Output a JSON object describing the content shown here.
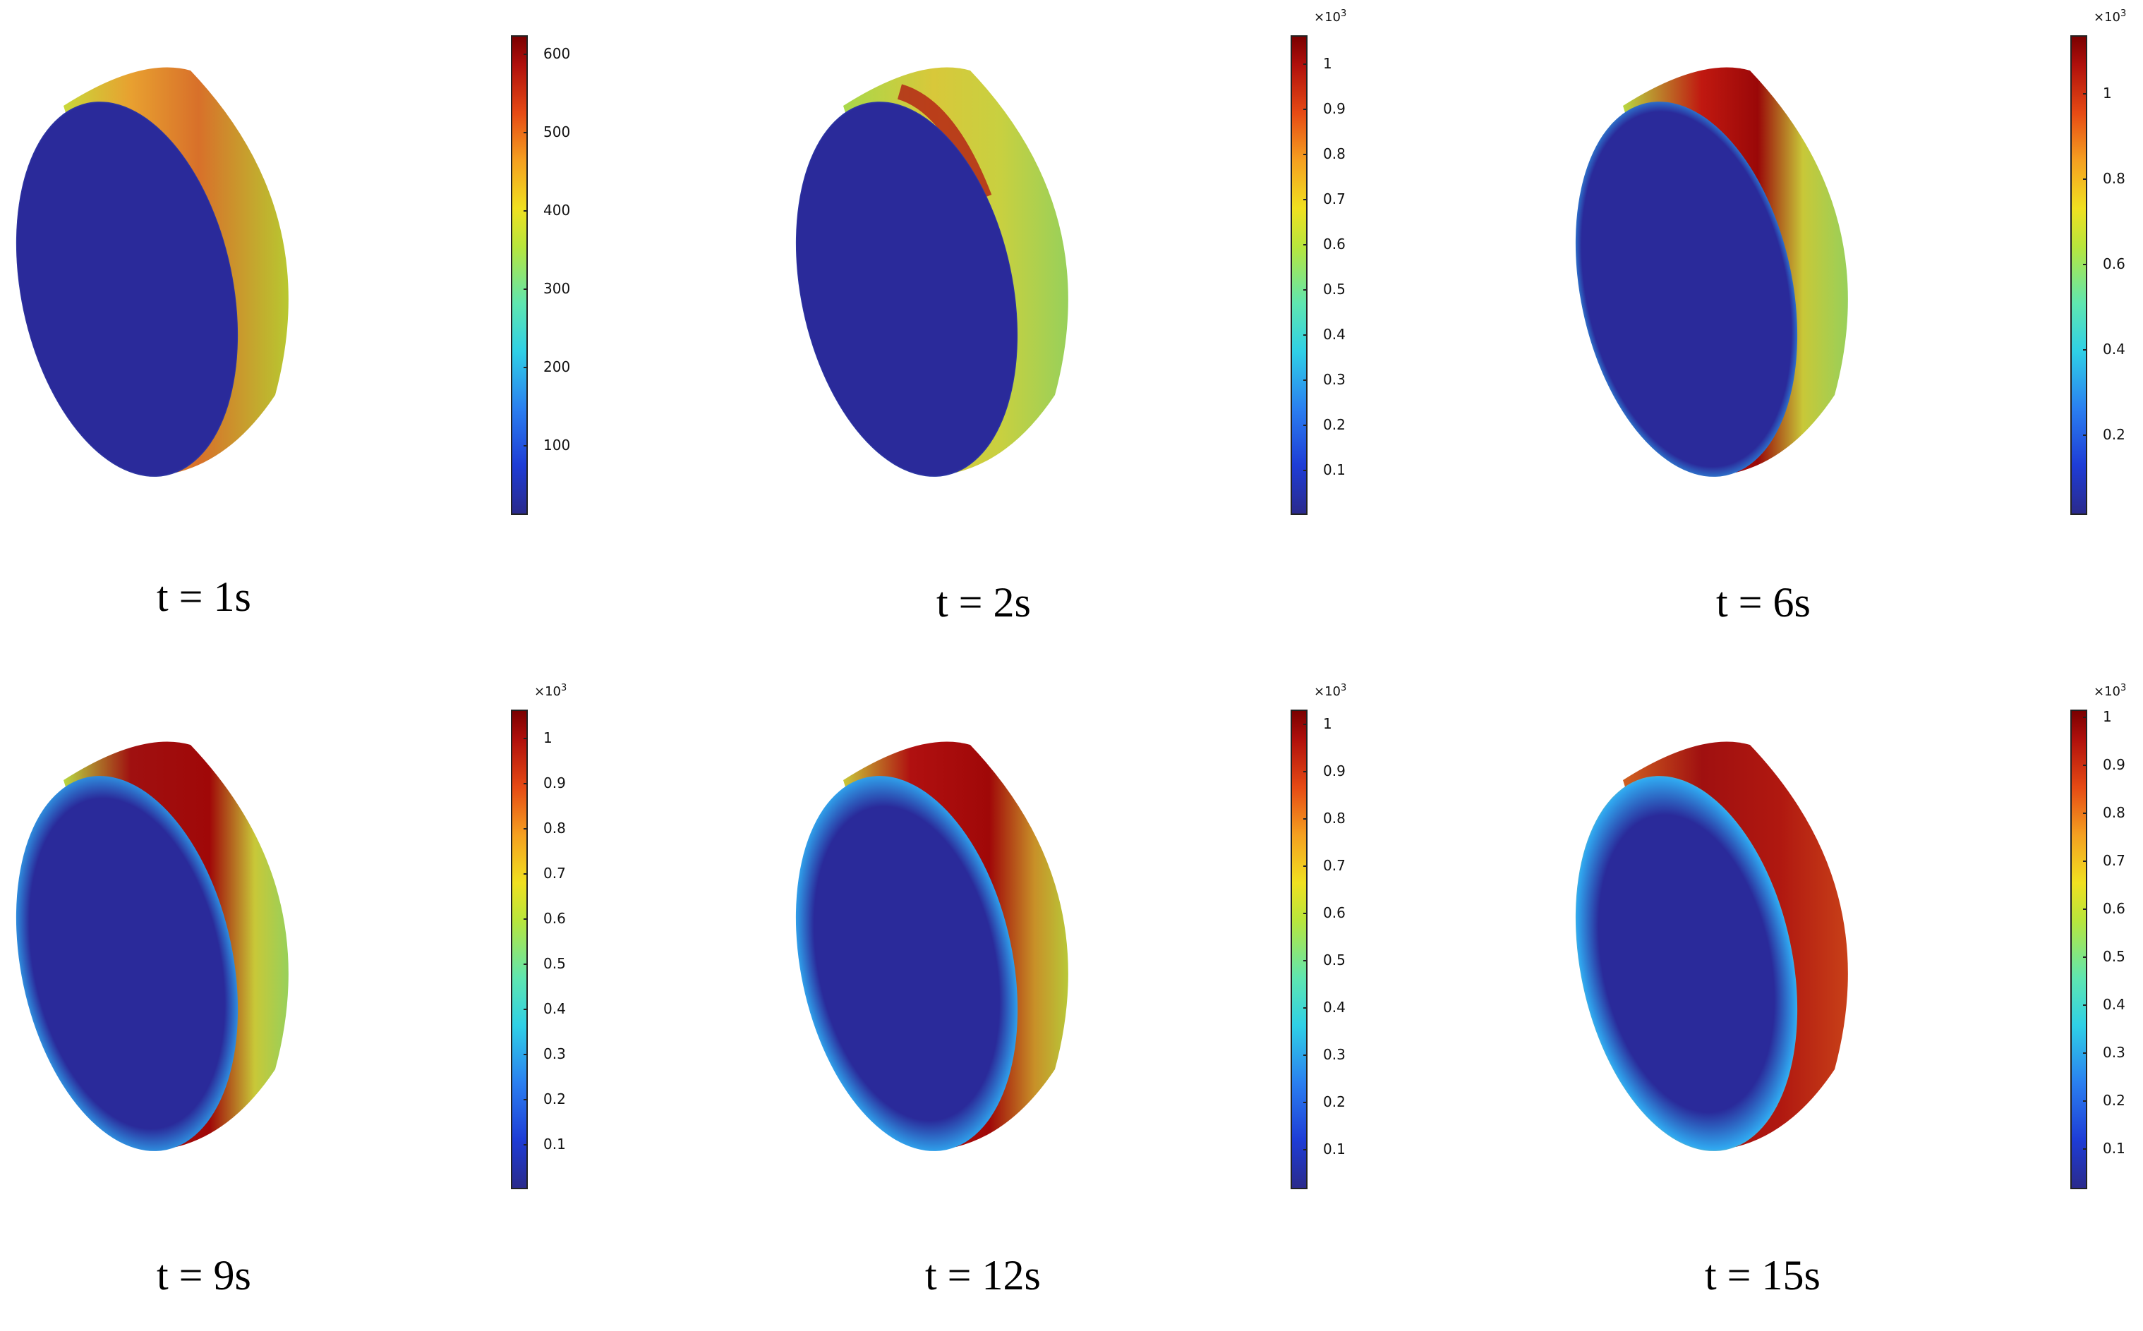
{
  "panels": [
    {
      "caption": "t = 1s",
      "multiplier": "",
      "ticks": [
        "600",
        "500",
        "400",
        "300",
        "200",
        "100"
      ]
    },
    {
      "caption": "t = 2s",
      "multiplier": "×10",
      "exp": "3",
      "ticks": [
        "1",
        "0.9",
        "0.8",
        "0.7",
        "0.6",
        "0.5",
        "0.4",
        "0.3",
        "0.2",
        "0.1"
      ]
    },
    {
      "caption": "t = 6s",
      "multiplier": "×10",
      "exp": "3",
      "ticks": [
        "1",
        "0.8",
        "0.6",
        "0.4",
        "0.2"
      ]
    },
    {
      "caption": "t = 9s",
      "multiplier": "×10",
      "exp": "3",
      "ticks": [
        "1",
        "0.9",
        "0.8",
        "0.7",
        "0.6",
        "0.5",
        "0.4",
        "0.3",
        "0.2",
        "0.1"
      ]
    },
    {
      "caption": "t = 12s",
      "multiplier": "×10",
      "exp": "3",
      "ticks": [
        "1",
        "0.9",
        "0.8",
        "0.7",
        "0.6",
        "0.5",
        "0.4",
        "0.3",
        "0.2",
        "0.1"
      ]
    },
    {
      "caption": "t = 15s",
      "multiplier": "×10",
      "exp": "3",
      "ticks": [
        "1",
        "0.9",
        "0.8",
        "0.7",
        "0.6",
        "0.5",
        "0.4",
        "0.3",
        "0.2",
        "0.1"
      ]
    }
  ],
  "colors": {
    "low": "#2a2a8c",
    "mid": "#b8e63c",
    "high": "#7a0000"
  }
}
